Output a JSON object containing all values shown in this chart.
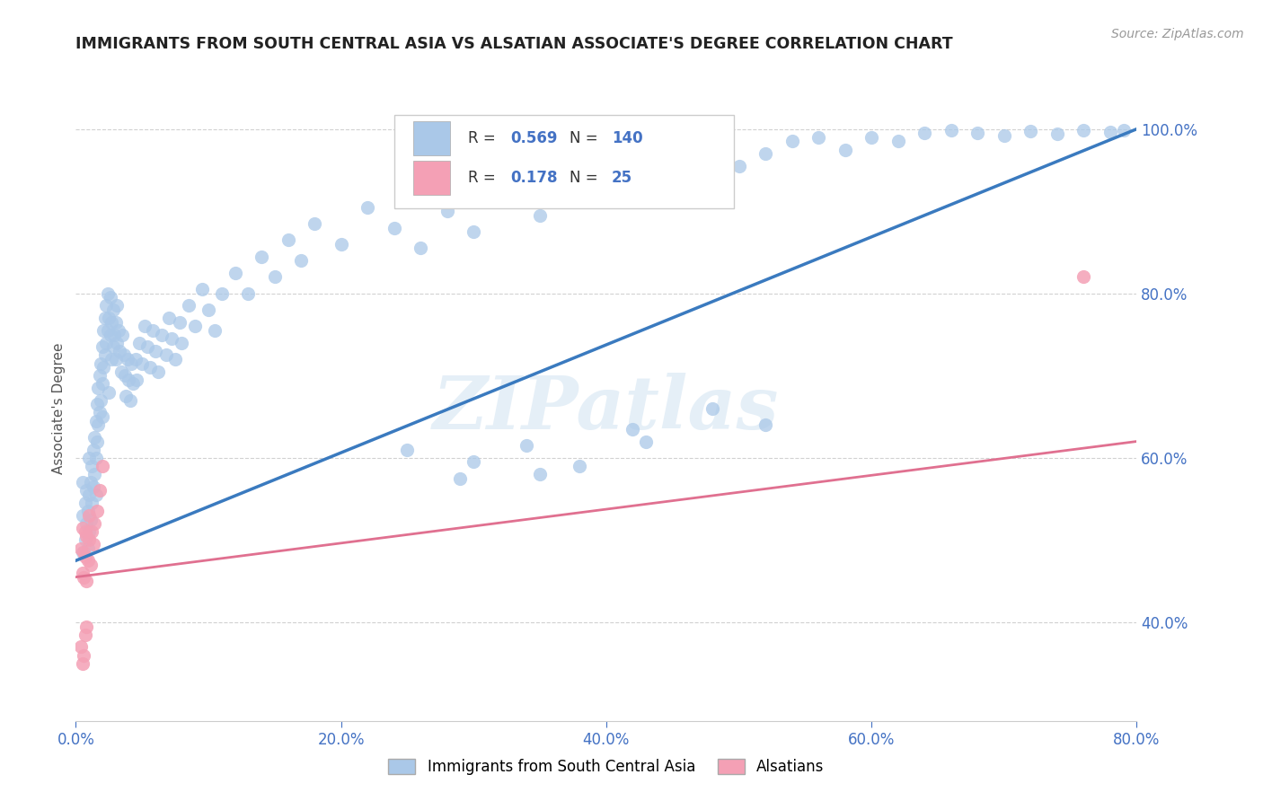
{
  "title": "IMMIGRANTS FROM SOUTH CENTRAL ASIA VS ALSATIAN ASSOCIATE'S DEGREE CORRELATION CHART",
  "source": "Source: ZipAtlas.com",
  "ylabel": "Associate's Degree",
  "xlim": [
    0.0,
    0.8
  ],
  "ylim": [
    0.28,
    1.04
  ],
  "yticks": [
    0.4,
    0.6,
    0.8,
    1.0
  ],
  "ytick_labels": [
    "40.0%",
    "60.0%",
    "80.0%",
    "100.0%"
  ],
  "xticks": [
    0.0,
    0.2,
    0.4,
    0.6,
    0.8
  ],
  "xtick_labels": [
    "0.0%",
    "20.0%",
    "40.0%",
    "60.0%",
    "80.0%"
  ],
  "blue_color": "#aac8e8",
  "pink_color": "#f4a0b5",
  "blue_line_color": "#3a7abf",
  "pink_line_color": "#e07090",
  "watermark": "ZIPatlas",
  "blue_scatter_x": [
    0.005,
    0.005,
    0.005,
    0.007,
    0.007,
    0.008,
    0.008,
    0.009,
    0.009,
    0.01,
    0.01,
    0.01,
    0.011,
    0.011,
    0.012,
    0.012,
    0.013,
    0.013,
    0.014,
    0.014,
    0.015,
    0.015,
    0.015,
    0.016,
    0.016,
    0.017,
    0.017,
    0.018,
    0.018,
    0.019,
    0.019,
    0.02,
    0.02,
    0.02,
    0.021,
    0.021,
    0.022,
    0.022,
    0.023,
    0.023,
    0.024,
    0.024,
    0.025,
    0.025,
    0.026,
    0.026,
    0.027,
    0.027,
    0.028,
    0.028,
    0.029,
    0.03,
    0.03,
    0.031,
    0.031,
    0.032,
    0.033,
    0.034,
    0.035,
    0.036,
    0.037,
    0.038,
    0.039,
    0.04,
    0.041,
    0.042,
    0.043,
    0.045,
    0.046,
    0.048,
    0.05,
    0.052,
    0.054,
    0.056,
    0.058,
    0.06,
    0.062,
    0.065,
    0.068,
    0.07,
    0.072,
    0.075,
    0.078,
    0.08,
    0.085,
    0.09,
    0.095,
    0.1,
    0.105,
    0.11,
    0.12,
    0.13,
    0.14,
    0.15,
    0.16,
    0.17,
    0.18,
    0.2,
    0.22,
    0.24,
    0.26,
    0.28,
    0.3,
    0.32,
    0.35,
    0.38,
    0.4,
    0.42,
    0.45,
    0.48,
    0.5,
    0.52,
    0.54,
    0.56,
    0.58,
    0.6,
    0.62,
    0.64,
    0.66,
    0.68,
    0.7,
    0.72,
    0.74,
    0.76,
    0.78,
    0.79,
    0.43,
    0.38,
    0.52,
    0.35,
    0.25,
    0.48,
    0.42,
    0.3,
    0.34,
    0.29
  ],
  "blue_scatter_y": [
    0.485,
    0.53,
    0.57,
    0.5,
    0.545,
    0.52,
    0.56,
    0.49,
    0.535,
    0.51,
    0.555,
    0.6,
    0.525,
    0.57,
    0.545,
    0.59,
    0.565,
    0.61,
    0.58,
    0.625,
    0.6,
    0.645,
    0.555,
    0.62,
    0.665,
    0.64,
    0.685,
    0.655,
    0.7,
    0.67,
    0.715,
    0.69,
    0.735,
    0.65,
    0.71,
    0.755,
    0.725,
    0.77,
    0.74,
    0.785,
    0.755,
    0.8,
    0.77,
    0.68,
    0.75,
    0.795,
    0.72,
    0.765,
    0.735,
    0.78,
    0.75,
    0.72,
    0.765,
    0.74,
    0.785,
    0.755,
    0.73,
    0.705,
    0.75,
    0.725,
    0.7,
    0.675,
    0.72,
    0.695,
    0.67,
    0.715,
    0.69,
    0.72,
    0.695,
    0.74,
    0.715,
    0.76,
    0.735,
    0.71,
    0.755,
    0.73,
    0.705,
    0.75,
    0.725,
    0.77,
    0.745,
    0.72,
    0.765,
    0.74,
    0.785,
    0.76,
    0.805,
    0.78,
    0.755,
    0.8,
    0.825,
    0.8,
    0.845,
    0.82,
    0.865,
    0.84,
    0.885,
    0.86,
    0.905,
    0.88,
    0.855,
    0.9,
    0.875,
    0.92,
    0.895,
    0.94,
    0.915,
    0.96,
    0.935,
    0.98,
    0.955,
    0.97,
    0.985,
    0.99,
    0.975,
    0.99,
    0.985,
    0.995,
    0.998,
    0.995,
    0.992,
    0.997,
    0.994,
    0.999,
    0.996,
    0.998,
    0.62,
    0.59,
    0.64,
    0.58,
    0.61,
    0.66,
    0.635,
    0.595,
    0.615,
    0.575
  ],
  "pink_scatter_x": [
    0.004,
    0.005,
    0.005,
    0.006,
    0.006,
    0.007,
    0.007,
    0.008,
    0.008,
    0.009,
    0.01,
    0.01,
    0.011,
    0.012,
    0.013,
    0.014,
    0.016,
    0.018,
    0.004,
    0.005,
    0.006,
    0.007,
    0.008,
    0.02,
    0.76
  ],
  "pink_scatter_y": [
    0.49,
    0.46,
    0.515,
    0.485,
    0.455,
    0.51,
    0.48,
    0.45,
    0.505,
    0.475,
    0.5,
    0.53,
    0.47,
    0.51,
    0.495,
    0.52,
    0.535,
    0.56,
    0.37,
    0.35,
    0.36,
    0.385,
    0.395,
    0.59,
    0.82
  ],
  "blue_line_x0": 0.0,
  "blue_line_y0": 0.475,
  "blue_line_x1": 0.8,
  "blue_line_y1": 1.0,
  "pink_line_x0": 0.0,
  "pink_line_y0": 0.455,
  "pink_line_x1": 0.8,
  "pink_line_y1": 0.62,
  "background_color": "#ffffff",
  "grid_color": "#cccccc",
  "tick_color": "#4472c4",
  "title_color": "#222222",
  "source_color": "#999999"
}
